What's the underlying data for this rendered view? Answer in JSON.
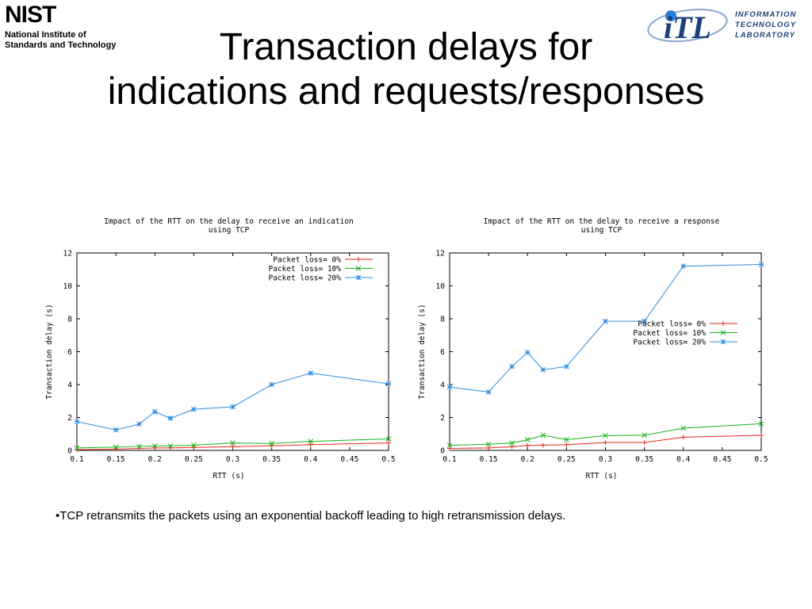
{
  "header": {
    "nist_logo_word": "NIST",
    "nist_logo_sub": "National Institute of\nStandards and Technology",
    "itl_logo_text": "INFORMATION\nTECHNOLOGY\nLABORATORY",
    "itl_logo_mark": "iTL",
    "title_line1": "Transaction delays for",
    "title_line2": "indications and requests/responses"
  },
  "bullet": "•TCP retransmits the packets using an exponential backoff leading to high retransmission delays.",
  "colors": {
    "series_0": "#e8251c",
    "series_10": "#18b418",
    "series_20": "#2a8be0",
    "itl_blue": "#1a3f7a"
  },
  "chart_data": [
    {
      "type": "line",
      "title": "Impact of the RTT on the delay to receive an indication\nusing TCP",
      "xlabel": "RTT (s)",
      "ylabel": "Transaction delay (s)",
      "xlim": [
        0.1,
        0.5
      ],
      "ylim": [
        0,
        12
      ],
      "xticks": [
        "0.1",
        "0.15",
        "0.2",
        "0.25",
        "0.3",
        "0.35",
        "0.4",
        "0.45",
        "0.5"
      ],
      "yticks": [
        "0",
        "2",
        "4",
        "6",
        "8",
        "10",
        "12"
      ],
      "grid": false,
      "legend_position": "top-right",
      "series": [
        {
          "name": "Packet loss= 0%",
          "marker": "plus",
          "x": [
            0.1,
            0.15,
            0.18,
            0.2,
            0.22,
            0.25,
            0.3,
            0.35,
            0.4,
            0.5
          ],
          "y": [
            0.05,
            0.08,
            0.12,
            0.15,
            0.15,
            0.18,
            0.22,
            0.28,
            0.35,
            0.45
          ]
        },
        {
          "name": "Packet loss= 10%",
          "marker": "cross",
          "x": [
            0.1,
            0.15,
            0.18,
            0.2,
            0.22,
            0.25,
            0.3,
            0.35,
            0.4,
            0.5
          ],
          "y": [
            0.15,
            0.2,
            0.25,
            0.28,
            0.28,
            0.32,
            0.45,
            0.42,
            0.55,
            0.7
          ]
        },
        {
          "name": "Packet loss= 20%",
          "marker": "star",
          "x": [
            0.1,
            0.15,
            0.18,
            0.2,
            0.22,
            0.25,
            0.3,
            0.35,
            0.4,
            0.5
          ],
          "y": [
            1.75,
            1.25,
            1.6,
            2.35,
            1.95,
            2.5,
            2.65,
            4.0,
            4.7,
            4.05
          ]
        }
      ]
    },
    {
      "type": "line",
      "title": "Impact of the RTT on the delay to receive a response\nusing TCP",
      "xlabel": "RTT (s)",
      "ylabel": "Transaction delay (s)",
      "xlim": [
        0.1,
        0.5
      ],
      "ylim": [
        0,
        12
      ],
      "xticks": [
        "0.1",
        "0.15",
        "0.2",
        "0.25",
        "0.3",
        "0.35",
        "0.4",
        "0.45",
        "0.5"
      ],
      "yticks": [
        "0",
        "2",
        "4",
        "6",
        "8",
        "10",
        "12"
      ],
      "grid": false,
      "legend_position": "center-right",
      "series": [
        {
          "name": "Packet loss= 0%",
          "marker": "plus",
          "x": [
            0.1,
            0.15,
            0.18,
            0.2,
            0.22,
            0.25,
            0.3,
            0.35,
            0.4,
            0.5
          ],
          "y": [
            0.12,
            0.15,
            0.22,
            0.3,
            0.32,
            0.35,
            0.48,
            0.48,
            0.8,
            0.92
          ]
        },
        {
          "name": "Packet loss= 10%",
          "marker": "cross",
          "x": [
            0.1,
            0.15,
            0.18,
            0.2,
            0.22,
            0.25,
            0.3,
            0.35,
            0.4,
            0.5
          ],
          "y": [
            0.3,
            0.38,
            0.45,
            0.65,
            0.92,
            0.65,
            0.9,
            0.92,
            1.35,
            1.62
          ]
        },
        {
          "name": "Packet loss= 20%",
          "marker": "star",
          "x": [
            0.1,
            0.15,
            0.18,
            0.2,
            0.22,
            0.25,
            0.3,
            0.35,
            0.4,
            0.5
          ],
          "y": [
            3.85,
            3.55,
            5.1,
            5.95,
            4.9,
            5.1,
            7.85,
            7.85,
            11.2,
            11.3
          ]
        }
      ]
    }
  ]
}
